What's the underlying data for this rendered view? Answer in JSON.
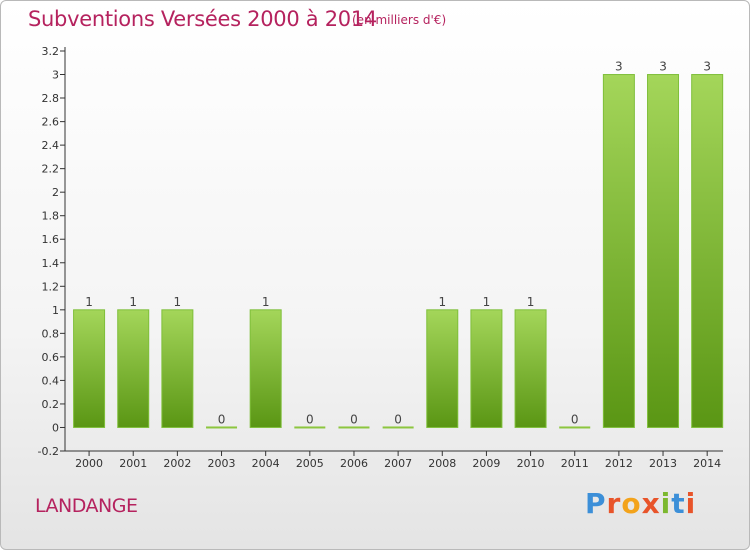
{
  "header": {
    "title": "Subventions Versées 2000 à 2014",
    "subtitle": "(en milliers d'€)"
  },
  "footer": {
    "commune": "LANDANGE",
    "brand_letters": [
      "P",
      "r",
      "o",
      "x",
      "i",
      "t",
      "i"
    ]
  },
  "colors": {
    "title": "#b5225e",
    "bar_top": "#a4d65a",
    "bar_bottom": "#5a9614",
    "axis": "#333333",
    "brand": [
      "#3c8fd8",
      "#e8542a",
      "#f3a31b",
      "#e8542a",
      "#7cb82f",
      "#3c8fd8",
      "#e8542a"
    ]
  },
  "chart_data": {
    "type": "bar",
    "title": "Subventions Versées 2000 à 2014",
    "categories": [
      "2000",
      "2001",
      "2002",
      "2003",
      "2004",
      "2005",
      "2006",
      "2007",
      "2008",
      "2009",
      "2010",
      "2011",
      "2012",
      "2013",
      "2014"
    ],
    "values": [
      1,
      1,
      1,
      0,
      1,
      0,
      0,
      0,
      1,
      1,
      1,
      0,
      3,
      3,
      3
    ],
    "data_labels": [
      "1",
      "1",
      "1",
      "0",
      "1",
      "0",
      "0",
      "0",
      "1",
      "1",
      "1",
      "0",
      "3",
      "3",
      "3"
    ],
    "ylim": [
      -0.2,
      3.2
    ],
    "yticks": [
      -0.2,
      0,
      0.2,
      0.4,
      0.6,
      0.8,
      1,
      1.2,
      1.4,
      1.6,
      1.8,
      2,
      2.2,
      2.4,
      2.6,
      2.8,
      3,
      3.2
    ],
    "ytick_labels": [
      "-0.2",
      "0",
      "0.2",
      "0.4",
      "0.6",
      "0.8",
      "1",
      "1.2",
      "1.4",
      "1.6",
      "1.8",
      "2",
      "2.2",
      "2.4",
      "2.6",
      "2.8",
      "3",
      "3.2"
    ],
    "grid": false,
    "legend": "none"
  }
}
